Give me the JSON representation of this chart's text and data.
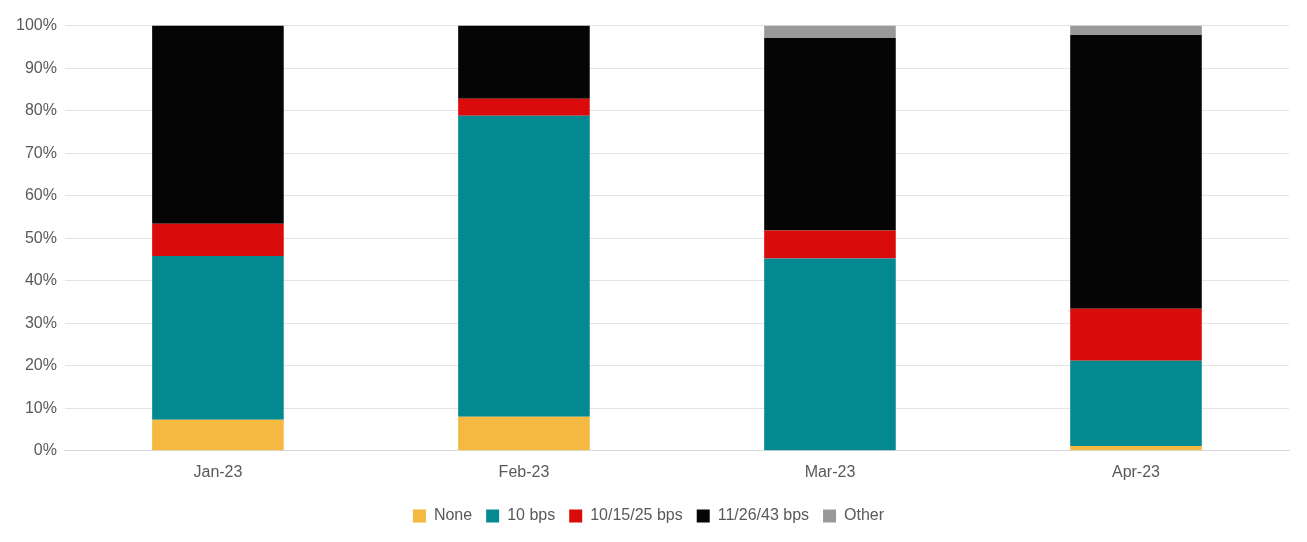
{
  "chart_data": {
    "type": "bar",
    "stacked": true,
    "categories": [
      "Jan-23",
      "Feb-23",
      "Mar-23",
      "Apr-23"
    ],
    "series": [
      {
        "name": "None",
        "color": "#f5b942",
        "values": [
          7.3,
          8,
          0,
          1.1
        ]
      },
      {
        "name": "10 bps",
        "color": "#038a91",
        "values": [
          38.5,
          70.8,
          45.2,
          20.1
        ]
      },
      {
        "name": "10/15/25 bps",
        "color": "#d90b0b",
        "values": [
          7.6,
          4,
          6.6,
          12.2
        ]
      },
      {
        "name": "11/26/43 bps",
        "color": "#050505",
        "values": [
          46.6,
          17.2,
          45.3,
          64.4
        ]
      },
      {
        "name": "Other",
        "color": "#999999",
        "values": [
          0,
          0,
          2.9,
          2.2
        ]
      }
    ],
    "ylim": [
      0,
      100
    ],
    "yticks": [
      {
        "value": 0,
        "label": "0%"
      },
      {
        "value": 10,
        "label": "10%"
      },
      {
        "value": 20,
        "label": "20%"
      },
      {
        "value": 30,
        "label": "30%"
      },
      {
        "value": 40,
        "label": "40%"
      },
      {
        "value": 50,
        "label": "50%"
      },
      {
        "value": 60,
        "label": "60%"
      },
      {
        "value": 70,
        "label": "70%"
      },
      {
        "value": 80,
        "label": "80%"
      },
      {
        "value": 90,
        "label": "90%"
      },
      {
        "value": 100,
        "label": "100%"
      }
    ],
    "grid": "y",
    "legend": "bottom"
  }
}
